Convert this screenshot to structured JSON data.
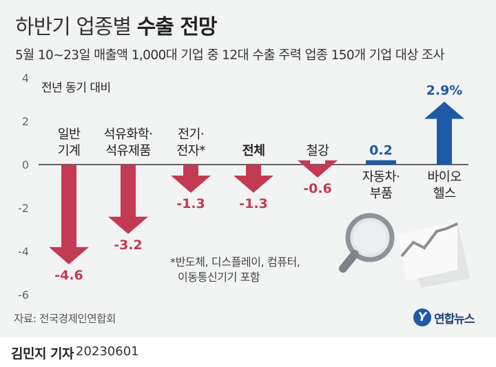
{
  "title_regular": "하반기 업종별",
  "title_bold": "수출 전망",
  "subtitle": "5월 10~23일 매출액 1,000대 기업 중 12대 수출 주력 업종 150개 기업 대상 조사",
  "source": "자료: 전국경제인연합회",
  "logo_text": "연합뉴스",
  "logo_mark": "Y",
  "reporter": "김민지 기자",
  "date": "20230601",
  "colors": {
    "negative": "#c23b52",
    "positive": "#1f5aa8",
    "highlight_line": "#2b2b2b"
  },
  "chart_data": {
    "type": "bar",
    "ylabel": "전년 동기 대비",
    "ylim": [
      -6,
      4
    ],
    "yticks": [
      "4",
      "2",
      "0",
      "-2",
      "-4",
      "-6"
    ],
    "ytick_values": [
      4,
      2,
      0,
      -2,
      -4,
      -6
    ],
    "categories": [
      [
        "일반",
        "기계"
      ],
      [
        "석유화학·",
        "석유제품"
      ],
      [
        "전기·",
        "전자*"
      ],
      [
        "전체"
      ],
      [
        "철강"
      ],
      [
        "자동차·",
        "부품"
      ],
      [
        "바이오",
        "헬스"
      ]
    ],
    "values": [
      -4.6,
      -3.2,
      -1.3,
      -1.3,
      -0.6,
      0.2,
      2.9
    ],
    "value_labels": [
      "-4.6",
      "-3.2",
      "-1.3",
      "-1.3",
      "-0.6",
      "0.2",
      "2.9%"
    ],
    "bold_category_index": 3,
    "footnote": [
      "*반도체, 디스플레이, 컴퓨터,",
      "이동통신기기 포함"
    ]
  }
}
